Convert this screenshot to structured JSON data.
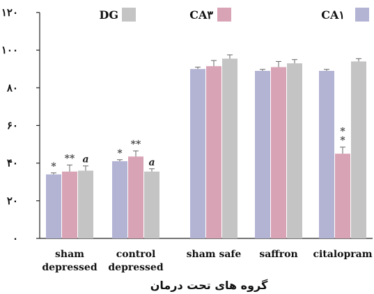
{
  "chart_data": {
    "type": "bar",
    "title": "",
    "xlabel": "گروه های تحت درمان",
    "ylabel": "",
    "ylim": [
      0,
      120
    ],
    "yticks": [
      {
        "value": 0,
        "label": "۰"
      },
      {
        "value": 20,
        "label": "۲۰"
      },
      {
        "value": 40,
        "label": "۴۰"
      },
      {
        "value": 60,
        "label": "۶۰"
      },
      {
        "value": 80,
        "label": "۸۰"
      },
      {
        "value": 100,
        "label": "۱۰۰"
      },
      {
        "value": 120,
        "label": "۱۲۰"
      }
    ],
    "categories": [
      [
        "sham",
        "depressed"
      ],
      [
        "control",
        "depressed"
      ],
      [
        "sham  safe"
      ],
      [
        "saffron"
      ],
      [
        "citalopram"
      ]
    ],
    "series": [
      {
        "name": "CA۱",
        "color": "#b3b3d4",
        "values": [
          34,
          41,
          90,
          89,
          89
        ],
        "errors": [
          0.8,
          0.8,
          1,
          0.8,
          0.8
        ],
        "annotations": [
          "*",
          "*",
          "",
          "",
          ""
        ]
      },
      {
        "name": "CA۳",
        "color": "#d9a3b6",
        "values": [
          35.5,
          43.5,
          91.5,
          91,
          45
        ],
        "errors": [
          3.5,
          3,
          3,
          3,
          3.5
        ],
        "annotations": [
          "**",
          "**",
          "",
          "",
          "**"
        ]
      },
      {
        "name": "DG",
        "color": "#c4c4c4",
        "values": [
          36,
          35.5,
          95.5,
          93,
          94
        ],
        "errors": [
          2.5,
          1.5,
          2,
          2,
          1.5
        ],
        "annotations": [
          "a",
          "a",
          "",
          "",
          ""
        ]
      }
    ],
    "legend_position": "top",
    "legend_order": [
      "DG",
      "CA۳",
      "CA۱"
    ],
    "grid": false
  }
}
